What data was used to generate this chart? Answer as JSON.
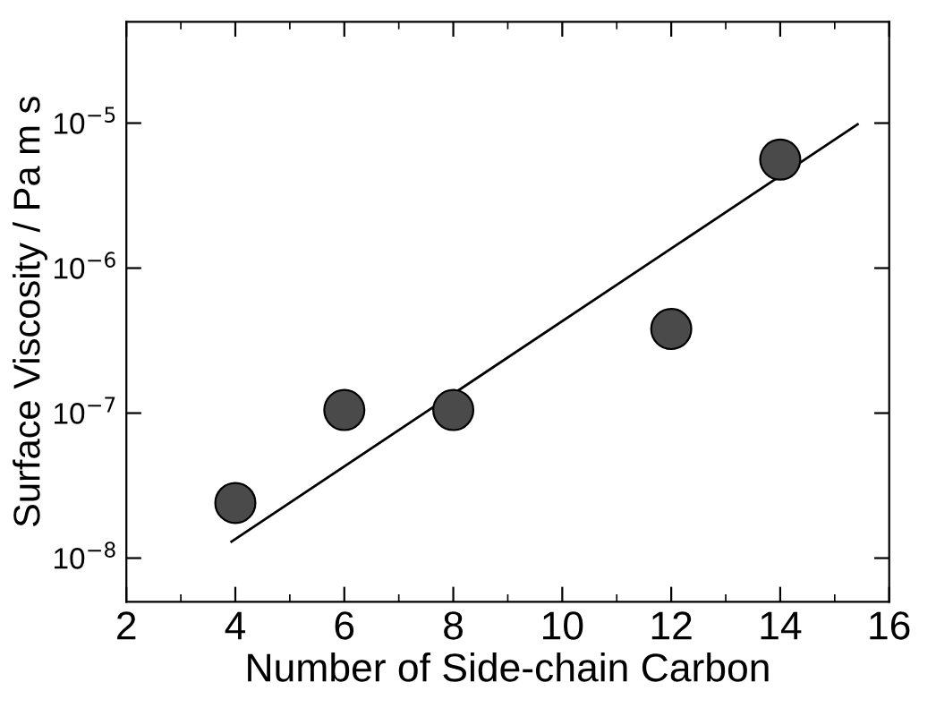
{
  "chart_data": {
    "type": "scatter",
    "xlabel": "Number of Side-chain Carbon",
    "ylabel": "Surface Viscosity / Pa m s",
    "log": "y",
    "grid": false,
    "xlim": [
      2,
      16
    ],
    "xticks": [
      2,
      4,
      6,
      8,
      10,
      12,
      14,
      16
    ],
    "ylim": [
      5e-09,
      5e-05
    ],
    "yticks": [
      {
        "value": 1e-08,
        "label": "10$^{−8}$"
      },
      {
        "value": 1e-07,
        "label": "10$^{−7}$"
      },
      {
        "value": 1e-06,
        "label": "10$^{−6}$"
      },
      {
        "value": 1e-05,
        "label": "10$^{−5}$"
      }
    ],
    "series": [
      {
        "marker": "circle",
        "color": "#4a4a4a",
        "x": [
          4,
          6,
          8,
          12,
          14
        ],
        "values": [
          2.4e-08,
          1.05e-07,
          1.05e-07,
          3.8e-07,
          5.6e-06
        ]
      },
      {
        "type": "line",
        "color": "#000000",
        "x": [
          3.93,
          15.42
        ],
        "values": [
          1.3e-08,
          9.8e-06
        ]
      }
    ]
  }
}
